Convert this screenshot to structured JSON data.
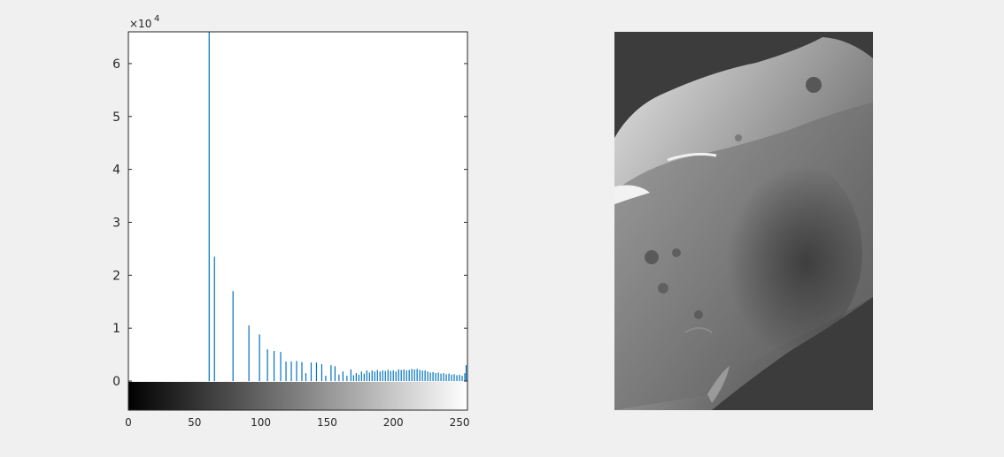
{
  "chart_data": {
    "type": "bar",
    "title": "",
    "xlabel": "",
    "ylabel": "",
    "xlim": [
      0,
      256
    ],
    "ylim": [
      -5500,
      66000
    ],
    "y_exponent_label": "×10",
    "y_exponent_power": "4",
    "y_ticks": [
      0,
      10000,
      20000,
      30000,
      40000,
      50000,
      60000
    ],
    "y_tick_labels": [
      "0",
      "1",
      "2",
      "3",
      "4",
      "5",
      "6"
    ],
    "x_ticks": [
      0,
      50,
      100,
      150,
      200,
      250
    ],
    "x_tick_labels": [
      "0",
      "50",
      "100",
      "150",
      "200",
      "250"
    ],
    "colorbar": "gray",
    "bar_color": "#0072bd",
    "series": [
      {
        "x": [
          61,
          65,
          79,
          91,
          99,
          105,
          110,
          115,
          119,
          123,
          127,
          131,
          134,
          138,
          142,
          146,
          149,
          153,
          156,
          159,
          162,
          165,
          168,
          170,
          172,
          174,
          176,
          178,
          180,
          182,
          184,
          186,
          188,
          190,
          192,
          194,
          196,
          198,
          200,
          202,
          204,
          206,
          208,
          210,
          212,
          214,
          216,
          218,
          220,
          222,
          224,
          226,
          228,
          230,
          232,
          234,
          236,
          238,
          240,
          242,
          244,
          246,
          248,
          250,
          252,
          254,
          255
        ],
        "values": [
          66000,
          23500,
          17000,
          10500,
          8800,
          6000,
          5700,
          5500,
          3700,
          3700,
          3800,
          3600,
          1500,
          3500,
          3500,
          3200,
          1000,
          3000,
          2800,
          1200,
          1800,
          1000,
          2200,
          1100,
          1500,
          1200,
          1800,
          1400,
          2000,
          1600,
          2000,
          1800,
          2100,
          1800,
          2000,
          1900,
          2100,
          1900,
          2000,
          1800,
          2200,
          2100,
          2200,
          2000,
          2100,
          2300,
          2200,
          2300,
          2100,
          2000,
          2000,
          1800,
          1600,
          1700,
          1500,
          1600,
          1400,
          1500,
          1300,
          1400,
          1200,
          1300,
          1100,
          1200,
          1000,
          1500,
          3000
        ]
      }
    ],
    "grid": false,
    "legend": "none"
  },
  "image": {
    "description_name": "grayscale-moon-image",
    "background_color": "#3c3c3c"
  }
}
